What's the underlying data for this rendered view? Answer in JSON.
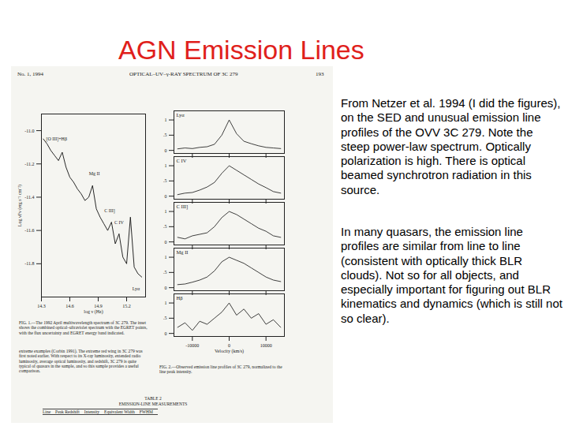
{
  "slide": {
    "title": "AGN Emission Lines",
    "paragraphs": [
      "From Netzer et al. 1994 (I did the figures), on the SED and unusual emission line profiles of the OVV 3C 279.  Note the steep power-law spectrum.  Optically polarization is high.  There is optical beamed synchrotron radiation in this source.",
      "In many quasars, the emission line profiles are similar from line to line (consistent with optically thick BLR clouds).  Not so for all objects, and especially important for figuring out BLR kinematics and dynamics (which is still not so clear)."
    ]
  },
  "scan": {
    "header": {
      "left": "No. 1, 1994",
      "center": "OPTICAL–UV–γ-RAY SPECTRUM OF 3C 279",
      "right": "193"
    },
    "figure1_caption": "FIG. 1.—The 1992 April multiwavelength spectrum of 3C 279. The inset shows the combined optical–ultraviolet spectrum with the EGRET points, with the flux uncertainty and EGRET energy band indicated.",
    "body_text": "extreme examples (Corbin 1991). The extreme red wing in 3C 279 was first noted earlier. With respect to its X-ray luminosity, extended radio luminosity, average optical luminosity, and redshift, 3C 279 is quite typical of quasars in the sample, and so this sample provides a useful comparison.",
    "figure2_caption": "FIG. 2.—Observed emission line profiles of 3C 279, normalized to the line peak intensity.",
    "table": {
      "title": "TABLE 2",
      "subtitle": "EMISSION-LINE MEASUREMENTS",
      "header": [
        "Line",
        "Peak Redshift",
        "Intensity",
        "Equivalent Width",
        "FWHM"
      ]
    }
  },
  "chart_data": [
    {
      "type": "line",
      "xlabel": "log ν (Hz)",
      "ylabel": "Log νFν (erg s⁻¹ cm⁻²)",
      "color": "#111111",
      "xlim": [
        14.3,
        15.4
      ],
      "xticks": [
        14.3,
        14.6,
        14.9,
        15.2
      ],
      "ylim": [
        -12.0,
        -10.9
      ],
      "yticks": [
        -11.8,
        -11.6,
        -11.4,
        -11.2,
        {
          "value": -11,
          "label": "-11.0"
        }
      ],
      "x": [
        14.32,
        14.36,
        14.4,
        14.44,
        14.48,
        14.52,
        14.56,
        14.6,
        14.64,
        14.68,
        14.72,
        14.76,
        14.8,
        14.84,
        14.88,
        14.92,
        14.96,
        15.0,
        15.04,
        15.08,
        15.12,
        15.16,
        15.2,
        15.24,
        15.28,
        15.32,
        15.36
      ],
      "values": [
        -11.05,
        -11.08,
        -11.12,
        -11.15,
        -11.18,
        -11.13,
        -11.22,
        -11.28,
        -11.31,
        -11.35,
        -11.38,
        -11.42,
        -11.4,
        -11.33,
        -11.47,
        -11.52,
        -11.56,
        -11.6,
        -11.55,
        -11.68,
        -11.62,
        -11.76,
        -11.8,
        -11.52,
        -11.82,
        -11.86,
        -11.88
      ],
      "annotations": [
        {
          "text": "[O III]+Hβ",
          "x": 14.46,
          "y": -11.05
        },
        {
          "text": "Mg II",
          "x": 14.86,
          "y": -11.26
        },
        {
          "text": "C III]",
          "x": 15.02,
          "y": -11.48
        },
        {
          "text": "C IV",
          "x": 15.12,
          "y": -11.55
        },
        {
          "text": "Lyα",
          "x": 15.3,
          "y": -11.95
        }
      ]
    },
    {
      "type": "line",
      "xlabel": "Velocity (km/s)",
      "color": "#111111",
      "xlim": [
        -15000,
        15000
      ],
      "xticks": [
        -10000,
        0,
        10000
      ],
      "ylim": [
        -0.1,
        1.3
      ],
      "yticks": [
        0,
        {
          "value": 0.5,
          "label": ".5"
        },
        1
      ],
      "x": [
        -14000,
        -12000,
        -10000,
        -8000,
        -6000,
        -4000,
        -2000,
        0,
        2000,
        4000,
        6000,
        8000,
        10000,
        12000,
        14000
      ],
      "series": [
        {
          "name": "Lyα",
          "values": [
            0.05,
            0.08,
            0.06,
            0.1,
            0.12,
            0.2,
            0.5,
            1.0,
            0.55,
            0.3,
            0.22,
            0.15,
            0.1,
            0.08,
            0.06
          ]
        },
        {
          "name": "C IV",
          "values": [
            0.05,
            0.1,
            0.12,
            0.2,
            0.3,
            0.45,
            0.75,
            1.0,
            0.85,
            0.7,
            0.55,
            0.4,
            0.28,
            0.15,
            0.1
          ]
        },
        {
          "name": "C III]",
          "values": [
            0.15,
            0.1,
            0.2,
            0.25,
            0.3,
            0.5,
            0.8,
            1.0,
            0.9,
            0.75,
            0.6,
            0.45,
            0.35,
            0.2,
            0.15
          ]
        },
        {
          "name": "Mg II",
          "values": [
            0.1,
            0.12,
            0.18,
            0.25,
            0.35,
            0.55,
            0.85,
            1.0,
            0.9,
            0.8,
            0.65,
            0.5,
            0.35,
            0.25,
            0.2
          ]
        },
        {
          "name": "Hβ",
          "values": [
            0.2,
            0.35,
            0.1,
            0.4,
            0.3,
            0.5,
            0.7,
            1.0,
            0.6,
            0.8,
            0.5,
            0.65,
            0.3,
            0.45,
            0.2
          ]
        }
      ]
    }
  ]
}
